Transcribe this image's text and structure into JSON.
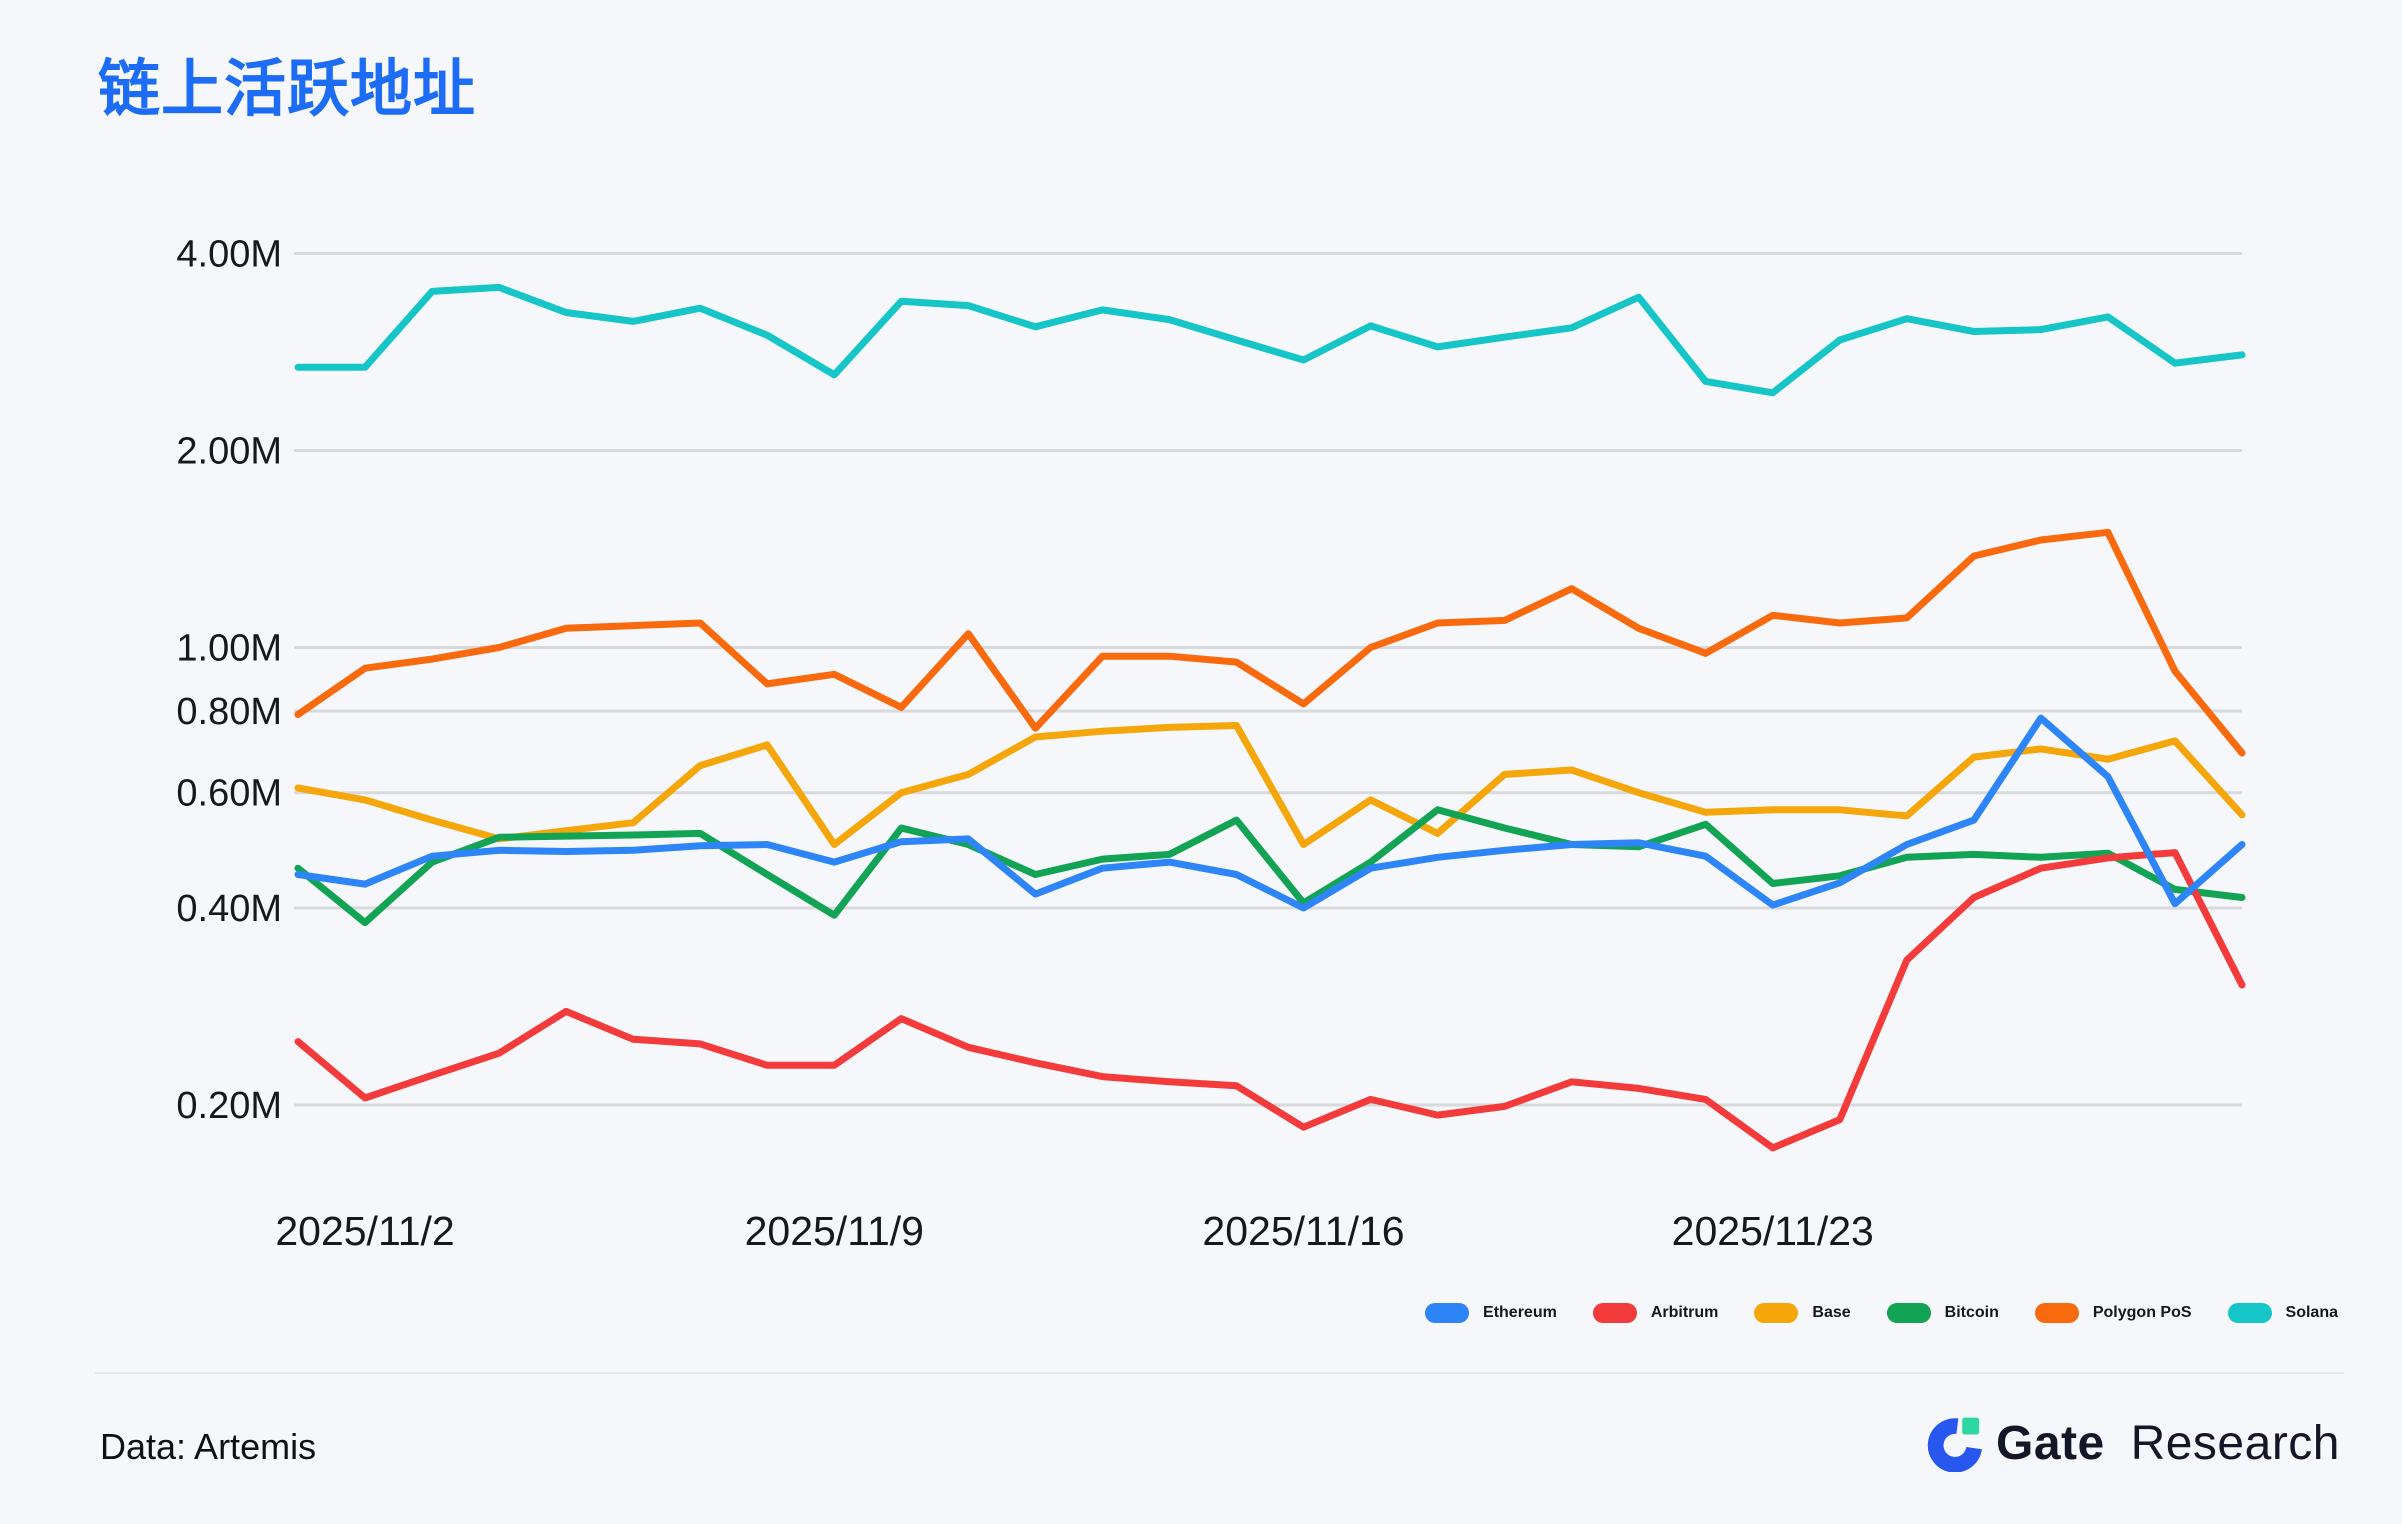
{
  "title": "链上活跃地址",
  "chart_data": {
    "type": "line",
    "title": "链上活跃地址",
    "y_scale": "log",
    "grid": true,
    "legend_position": "bottom-right",
    "unit": "M = millions of active addresses",
    "ylim": [
      0.15,
      4.2
    ],
    "x": [
      "2025/11/1",
      "2025/11/2",
      "2025/11/3",
      "2025/11/4",
      "2025/11/5",
      "2025/11/6",
      "2025/11/7",
      "2025/11/8",
      "2025/11/9",
      "2025/11/10",
      "2025/11/11",
      "2025/11/12",
      "2025/11/13",
      "2025/11/14",
      "2025/11/15",
      "2025/11/16",
      "2025/11/17",
      "2025/11/18",
      "2025/11/19",
      "2025/11/20",
      "2025/11/21",
      "2025/11/22",
      "2025/11/23",
      "2025/11/24",
      "2025/11/25",
      "2025/11/26",
      "2025/11/27",
      "2025/11/28",
      "2025/11/29",
      "2025/11/30"
    ],
    "x_ticks": [
      {
        "index": 1,
        "label": "2025/11/2"
      },
      {
        "index": 8,
        "label": "2025/11/9"
      },
      {
        "index": 15,
        "label": "2025/11/16"
      },
      {
        "index": 22,
        "label": "2025/11/23"
      }
    ],
    "y_ticks": [
      {
        "value": 4.0,
        "label": "4.00M"
      },
      {
        "value": 2.0,
        "label": "2.00M"
      },
      {
        "value": 1.0,
        "label": "1.00M"
      },
      {
        "value": 0.8,
        "label": "0.80M"
      },
      {
        "value": 0.6,
        "label": "0.60M"
      },
      {
        "value": 0.4,
        "label": "0.40M"
      },
      {
        "value": 0.2,
        "label": "0.20M"
      }
    ],
    "series": [
      {
        "name": "Ethereum",
        "color": "#2E85F7",
        "values": [
          0.45,
          0.435,
          0.48,
          0.49,
          0.488,
          0.49,
          0.498,
          0.5,
          0.47,
          0.505,
          0.51,
          0.42,
          0.46,
          0.47,
          0.45,
          0.4,
          0.46,
          0.478,
          0.49,
          0.5,
          0.503,
          0.48,
          0.404,
          0.437,
          0.5,
          0.545,
          0.78,
          0.635,
          0.406,
          0.5
        ]
      },
      {
        "name": "Arbitrum",
        "color": "#F43B3B",
        "values": [
          0.25,
          0.205,
          0.222,
          0.24,
          0.278,
          0.252,
          0.248,
          0.23,
          0.23,
          0.271,
          0.245,
          0.232,
          0.221,
          0.217,
          0.214,
          0.185,
          0.204,
          0.193,
          0.199,
          0.217,
          0.212,
          0.204,
          0.172,
          0.19,
          0.333,
          0.415,
          0.46,
          0.477,
          0.486,
          0.305
        ]
      },
      {
        "name": "Base",
        "color": "#F5A60B",
        "values": [
          0.61,
          0.585,
          0.545,
          0.51,
          0.525,
          0.54,
          0.66,
          0.71,
          0.5,
          0.6,
          0.64,
          0.73,
          0.745,
          0.755,
          0.76,
          0.5,
          0.585,
          0.52,
          0.64,
          0.65,
          0.6,
          0.56,
          0.565,
          0.565,
          0.553,
          0.68,
          0.7,
          0.675,
          0.72,
          0.555
        ]
      },
      {
        "name": "Bitcoin",
        "color": "#12A454",
        "values": [
          0.46,
          0.38,
          0.47,
          0.513,
          0.515,
          0.517,
          0.52,
          0.45,
          0.39,
          0.53,
          0.5,
          0.45,
          0.475,
          0.483,
          0.545,
          0.407,
          0.47,
          0.565,
          0.53,
          0.5,
          0.496,
          0.537,
          0.436,
          0.448,
          0.478,
          0.483,
          0.478,
          0.485,
          0.427,
          0.415
        ]
      },
      {
        "name": "Polygon PoS",
        "color": "#F96A0E",
        "values": [
          0.79,
          0.93,
          0.96,
          1.0,
          1.07,
          1.08,
          1.09,
          0.88,
          0.91,
          0.81,
          1.05,
          0.753,
          0.97,
          0.97,
          0.95,
          0.82,
          1.0,
          1.09,
          1.1,
          1.23,
          1.07,
          0.98,
          1.12,
          1.09,
          1.11,
          1.38,
          1.46,
          1.5,
          0.92,
          0.69
        ]
      },
      {
        "name": "Solana",
        "color": "#16C5C7",
        "values": [
          2.68,
          2.68,
          3.5,
          3.55,
          3.25,
          3.15,
          3.3,
          3.0,
          2.61,
          3.38,
          3.33,
          3.09,
          3.28,
          3.17,
          2.95,
          2.75,
          3.1,
          2.88,
          2.98,
          3.08,
          3.43,
          2.55,
          2.45,
          2.95,
          3.18,
          3.04,
          3.06,
          3.2,
          2.72,
          2.8
        ]
      }
    ],
    "draw_order": [
      5,
      4,
      2,
      3,
      1,
      0
    ]
  },
  "colors": {
    "background": "#f5f7fa",
    "title": "#1c6cf6",
    "gridline": "#d8d9dc",
    "axis_text": "#17181b",
    "logo_blue": "#2857f0",
    "logo_green": "#2fd7a0"
  },
  "footer": {
    "source": "Data: Artemis",
    "brand": {
      "name": "Gate",
      "suffix": "Research"
    }
  }
}
